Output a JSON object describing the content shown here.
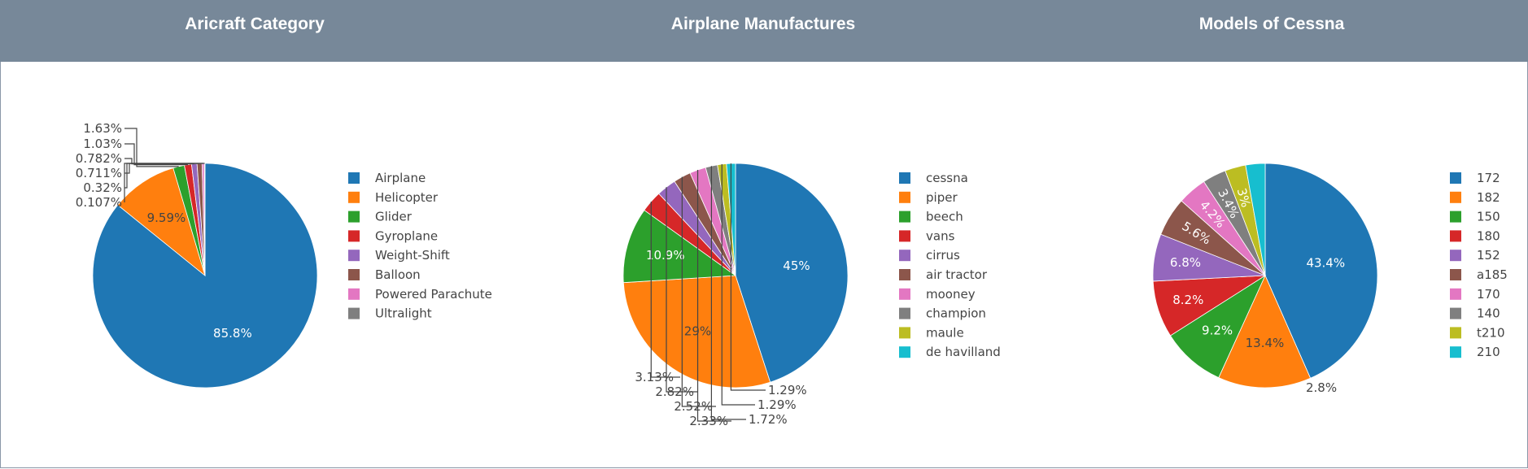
{
  "chart_data": [
    {
      "type": "pie",
      "title": "Aricraft Category",
      "categories": [
        "Airplane",
        "Helicopter",
        "Glider",
        "Gyroplane",
        "Weight-Shift",
        "Balloon",
        "Powered Parachute",
        "Ultralight"
      ],
      "values": [
        85.8,
        9.59,
        1.63,
        1.03,
        0.782,
        0.711,
        0.32,
        0.107
      ],
      "labels": [
        "85.8%",
        "9.59%",
        "1.63%",
        "1.03%",
        "0.782%",
        "0.711%",
        "0.32%",
        "0.107%"
      ],
      "colors": [
        "#1f77b4",
        "#ff7f0e",
        "#2ca02c",
        "#d62728",
        "#9467bd",
        "#8c564b",
        "#e377c2",
        "#7f7f7f"
      ],
      "legend_placement": "right"
    },
    {
      "type": "pie",
      "title": "Airplane Manufactures",
      "categories": [
        "cessna",
        "piper",
        "beech",
        "vans",
        "cirrus",
        "air tractor",
        "mooney",
        "champion",
        "maule",
        "de havilland"
      ],
      "values": [
        45,
        29,
        10.9,
        3.13,
        2.82,
        2.52,
        2.33,
        1.72,
        1.29,
        1.29
      ],
      "labels": [
        "45%",
        "29%",
        "10.9%",
        "3.13%",
        "2.82%",
        "2.52%",
        "2.33%",
        "1.72%",
        "1.29%",
        "1.29%"
      ],
      "colors": [
        "#1f77b4",
        "#ff7f0e",
        "#2ca02c",
        "#d62728",
        "#9467bd",
        "#8c564b",
        "#e377c2",
        "#7f7f7f",
        "#bcbd22",
        "#17becf"
      ],
      "legend_placement": "right"
    },
    {
      "type": "pie",
      "title": "Models of Cessna",
      "categories": [
        "172",
        "182",
        "150",
        "180",
        "152",
        "a185",
        "170",
        "140",
        "t210",
        "210"
      ],
      "values": [
        43.4,
        13.4,
        9.2,
        8.2,
        6.8,
        5.6,
        4.2,
        3.4,
        3,
        2.8
      ],
      "labels": [
        "43.4%",
        "13.4%",
        "9.2%",
        "8.2%",
        "6.8%",
        "5.6%",
        "4.2%",
        "3.4%",
        "3%",
        "2.8%"
      ],
      "colors": [
        "#1f77b4",
        "#ff7f0e",
        "#2ca02c",
        "#d62728",
        "#9467bd",
        "#8c564b",
        "#e377c2",
        "#7f7f7f",
        "#bcbd22",
        "#17becf"
      ],
      "legend_placement": "right"
    }
  ]
}
